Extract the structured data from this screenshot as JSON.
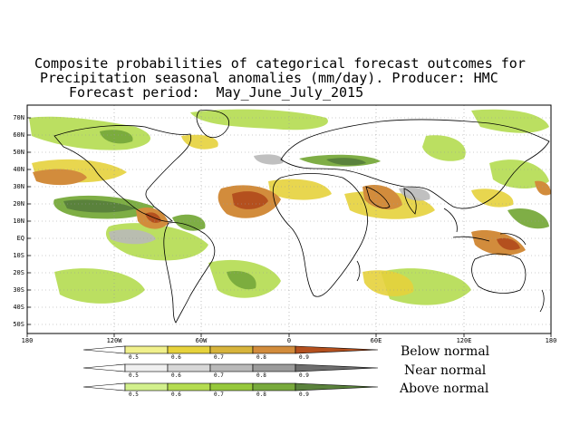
{
  "title": {
    "line1": "Composite probabilities of categorical forecast outcomes for",
    "line2": "Precipitation seasonal anomalies (mm/day). Producer: HMC",
    "line3": "Forecast period:  May_June_July_2015"
  },
  "map": {
    "lat_labels": [
      "70N",
      "60N",
      "50N",
      "40N",
      "30N",
      "20N",
      "10N",
      "EQ",
      "10S",
      "20S",
      "30S",
      "40S",
      "50S"
    ],
    "lon_labels": [
      "180",
      "120W",
      "60W",
      "0",
      "60E",
      "120E",
      "180"
    ]
  },
  "legend": {
    "ticks": [
      "0.5",
      "0.6",
      "0.7",
      "0.8",
      "0.9"
    ],
    "rows": [
      {
        "label": "Below normal",
        "colors": [
          "#f0f08c",
          "#e6d23c",
          "#d7b43c",
          "#d28c3c",
          "#b4501e"
        ]
      },
      {
        "label": "Near normal",
        "colors": [
          "#f0f0f0",
          "#d7d7d7",
          "#b9b9b9",
          "#9b9b9b",
          "#6e6e6e"
        ]
      },
      {
        "label": "Above normal",
        "colors": [
          "#d2f08c",
          "#b4dc50",
          "#96c83c",
          "#78aa3c",
          "#5a823c"
        ]
      }
    ]
  }
}
